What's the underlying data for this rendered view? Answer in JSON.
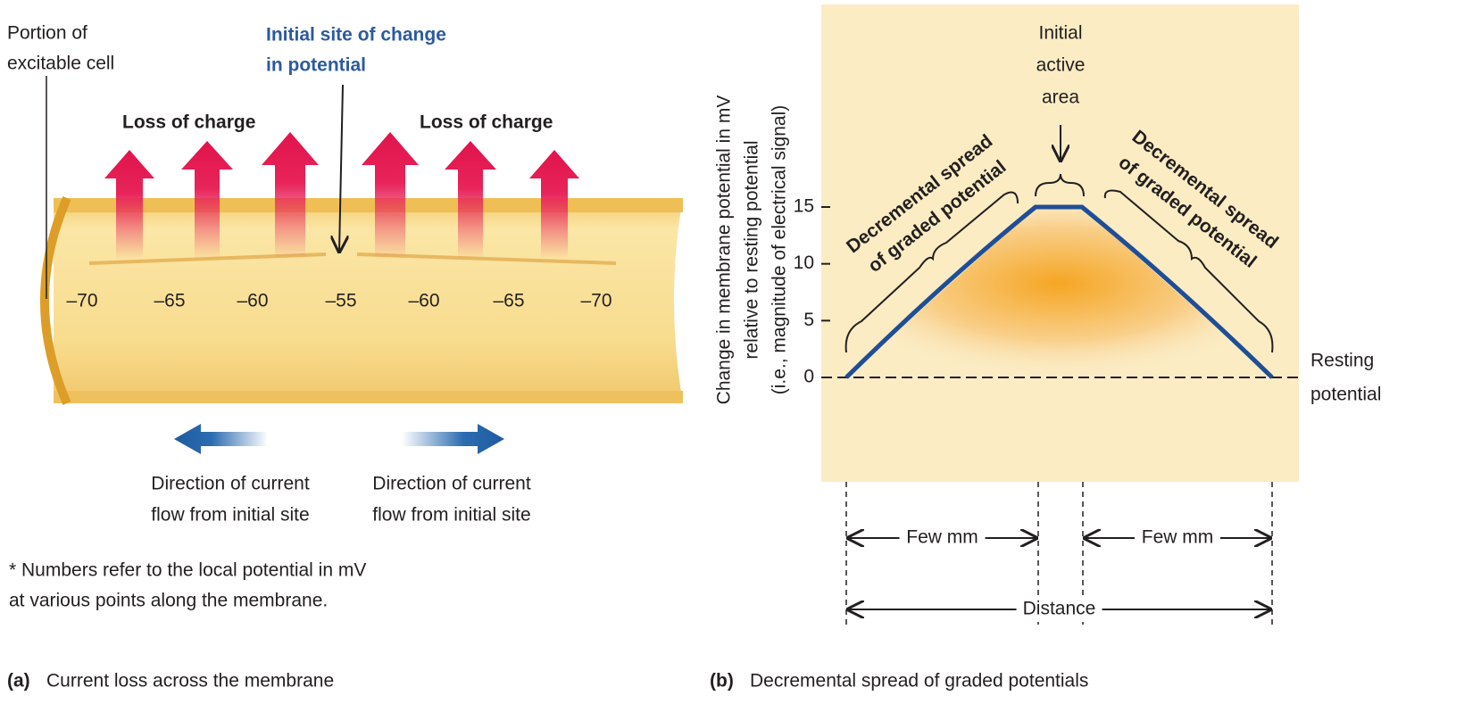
{
  "panel_a": {
    "cell_label": [
      "Portion of",
      "excitable cell"
    ],
    "initial_site": [
      "Initial site of change",
      "in potential"
    ],
    "loss_left": "Loss of charge",
    "loss_right": "Loss of charge",
    "potentials": [
      "–70",
      "–65",
      "–60",
      "–55",
      "–60",
      "–65",
      "–70"
    ],
    "current_left": [
      "Direction of current",
      "flow from initial site"
    ],
    "current_right": [
      "Direction of current",
      "flow from initial site"
    ],
    "footnote": [
      "* Numbers refer to the local potential in mV",
      "at various points along the membrane."
    ],
    "caption": {
      "letter": "(a)",
      "text": "Current loss across the membrane"
    }
  },
  "panel_b": {
    "y_label": [
      "Change in membrane potential in mV",
      "relative to resting potential",
      "(i.e., magnitude of electrical signal)"
    ],
    "yticks": [
      0,
      5,
      10,
      15
    ],
    "initial_active": [
      "Initial",
      "active",
      "area"
    ],
    "spread_left": [
      "Decremental spread",
      "of graded potential"
    ],
    "spread_right": [
      "Decremental spread",
      "of graded potential"
    ],
    "resting": [
      "Resting",
      "potential"
    ],
    "few_mm_left": "Few mm",
    "few_mm_right": "Few mm",
    "distance": "Distance",
    "caption": {
      "letter": "(b)",
      "text": "Decremental spread of graded potentials"
    }
  }
}
